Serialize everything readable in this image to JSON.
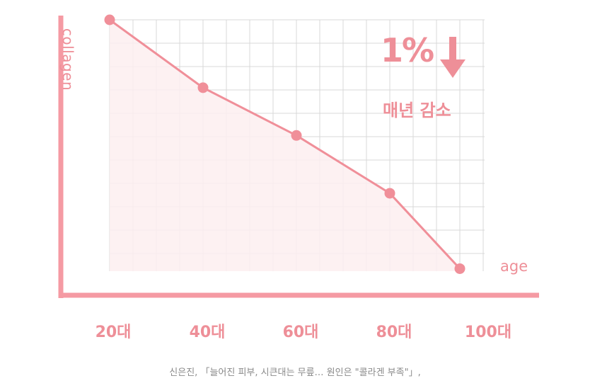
{
  "chart_data": {
    "type": "line",
    "xlabel": "age",
    "ylabel": "collagen",
    "categories": [
      "20대",
      "40대",
      "60대",
      "80대",
      "100대"
    ],
    "x": [
      20,
      40,
      60,
      80,
      95
    ],
    "xlim": [
      20,
      100
    ],
    "y": [
      100,
      73,
      54,
      31,
      1
    ],
    "ylim": [
      0,
      100
    ],
    "grid": true,
    "area_fill": true,
    "annotation": {
      "value": "1%",
      "text": "매년 감소"
    }
  },
  "caption": "신은진, 「늘어진 피부, 시큰대는 무릎… 원인은 \"콜라겐 부족\"」,",
  "colors": {
    "line": "#f08f99",
    "axis": "#f59aa3",
    "grid": "#d9d9d9",
    "fill": "#fdeef0",
    "text": "#ee8f98"
  }
}
